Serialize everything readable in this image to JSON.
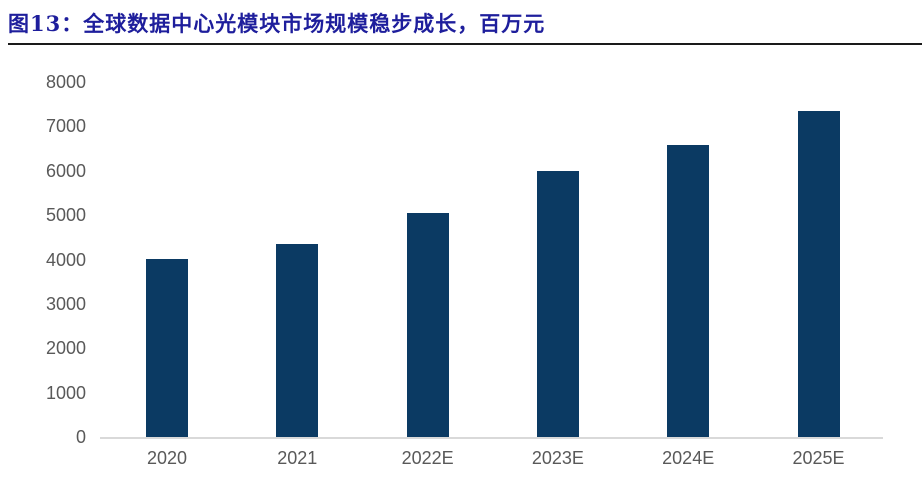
{
  "header": {
    "title": "图13：全球数据中心光模块市场规模稳步成长，百万元",
    "title_color": "#1e1e9c",
    "rule_color": "#1a1a1a"
  },
  "chart_data": {
    "type": "bar",
    "title": "全球数据中心光模块市场规模稳步成长",
    "unit": "百万元",
    "categories": [
      "2020",
      "2021",
      "2022E",
      "2023E",
      "2024E",
      "2025E"
    ],
    "values": [
      4020,
      4360,
      5050,
      5990,
      6580,
      7340
    ],
    "xlabel": "",
    "ylabel": "",
    "ylim": [
      0,
      8000
    ],
    "yticks": [
      0,
      1000,
      2000,
      3000,
      4000,
      5000,
      6000,
      7000,
      8000
    ],
    "grid": false,
    "legend": "none",
    "bar_color": "#0b3a63",
    "axis_line_color": "#d9d9d9",
    "tick_label_color": "#595959"
  }
}
